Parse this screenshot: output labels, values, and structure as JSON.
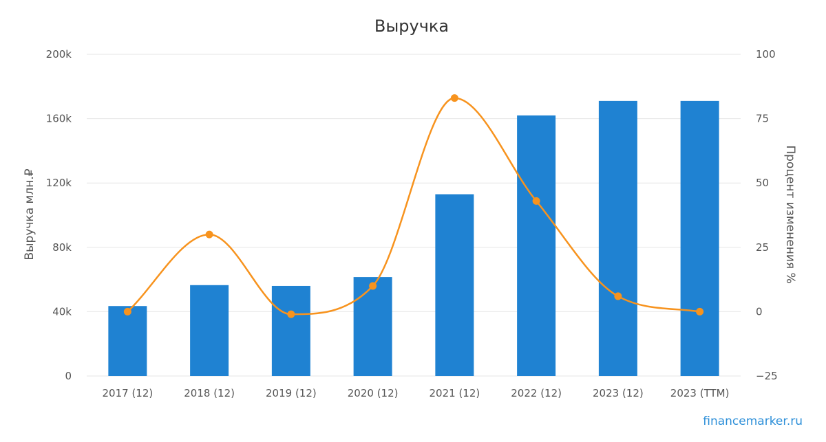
{
  "chart_data": {
    "type": "bar",
    "title": "Выручка",
    "categories": [
      "2017 (12)",
      "2018 (12)",
      "2019 (12)",
      "2020 (12)",
      "2021 (12)",
      "2022 (12)",
      "2023 (12)",
      "2023 (TTM)"
    ],
    "series": [
      {
        "type": "bar",
        "axis": "left",
        "values": [
          43500,
          56500,
          56000,
          61500,
          113000,
          162000,
          171000,
          171000
        ],
        "color": "#1f82d2"
      },
      {
        "type": "line",
        "axis": "right",
        "values": [
          0,
          30,
          -1,
          10,
          83,
          43,
          6,
          0
        ],
        "color": "#f7931e"
      }
    ],
    "y_left": {
      "label": "Выручка млн.₽",
      "ylim": [
        0,
        200000
      ],
      "ticks": [
        0,
        40000,
        80000,
        120000,
        160000,
        200000
      ],
      "tick_labels": [
        "0",
        "40k",
        "80k",
        "120k",
        "160k",
        "200k"
      ]
    },
    "y_right": {
      "label": "Процент изменения %",
      "ylim": [
        -25,
        100
      ],
      "ticks": [
        -25,
        0,
        25,
        50,
        75,
        100
      ],
      "tick_labels": [
        "−25",
        "0",
        "25",
        "50",
        "75",
        "100"
      ]
    },
    "grid": true,
    "legend": "none",
    "watermark": "financemarker.ru"
  }
}
